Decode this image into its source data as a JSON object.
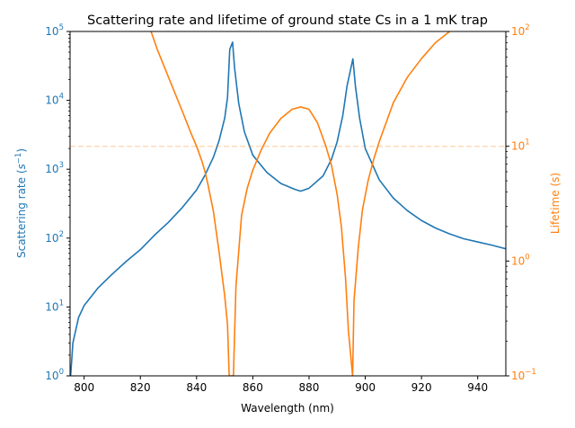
{
  "chart_data": {
    "type": "line",
    "title": "Scattering rate and lifetime of ground state Cs in a 1 mK trap",
    "xlabel": "Wavelength (nm)",
    "xlim": [
      795,
      950
    ],
    "x_ticks": [
      "800",
      "820",
      "840",
      "860",
      "880",
      "900",
      "920",
      "940"
    ],
    "x_tick_values": [
      800,
      820,
      840,
      860,
      880,
      900,
      920,
      940
    ],
    "left_axis": {
      "label_text": "Scattering rate (",
      "label_var": "s",
      "label_exp": "−1",
      "label_close": ")",
      "scale": "log",
      "ylim": [
        1,
        100000
      ],
      "color": "#1f77b4",
      "tick_exponents": [
        "0",
        "1",
        "2",
        "3",
        "4",
        "5"
      ]
    },
    "right_axis": {
      "label": "Lifetime (s)",
      "scale": "log",
      "ylim": [
        0.1,
        100
      ],
      "color": "#ff7f0e",
      "tick_exponents": [
        "−1",
        "0",
        "1",
        "2"
      ]
    },
    "resonances_nm": [
      852.3,
      894.6
    ],
    "series": [
      {
        "axis": "left",
        "color": "#1f77b4",
        "x": [
          795.2,
          796,
          798,
          800,
          805,
          810,
          815,
          820,
          825,
          830,
          835,
          840,
          843,
          846,
          848,
          850,
          851,
          851.8,
          852.8,
          853.5,
          855,
          857,
          860,
          865,
          870,
          875,
          877,
          880,
          885,
          888,
          890,
          892,
          893.5,
          895.6,
          896.5,
          898,
          900,
          905,
          910,
          915,
          920,
          925,
          930,
          935,
          940,
          945,
          950
        ],
        "y": [
          1,
          3,
          7,
          10.5,
          19,
          30,
          46,
          68,
          110,
          170,
          280,
          500,
          820,
          1500,
          2600,
          5500,
          11000,
          55000,
          70000,
          30000,
          9000,
          3500,
          1600,
          900,
          620,
          510,
          480,
          530,
          800,
          1400,
          2500,
          6000,
          16000,
          40000,
          16000,
          5500,
          2000,
          700,
          380,
          250,
          180,
          140,
          115,
          98,
          88,
          79,
          70
        ]
      },
      {
        "axis": "right",
        "color": "#ff7f0e",
        "x": [
          823.8,
          826,
          830,
          835,
          838,
          840,
          842,
          843,
          844,
          846,
          848,
          850,
          851,
          851.6,
          853.1,
          854,
          856,
          858,
          860,
          863,
          866,
          870,
          874,
          877,
          880,
          883,
          886,
          888,
          890,
          891.5,
          893,
          894,
          895.5,
          896,
          897.5,
          899,
          901,
          903,
          905,
          910,
          915,
          920,
          925,
          930
        ],
        "y": [
          100,
          70,
          40,
          20,
          13,
          10,
          7.3,
          6,
          4.7,
          2.7,
          1.2,
          0.5,
          0.28,
          0.1,
          0.1,
          0.6,
          2.5,
          4.3,
          6.2,
          9.3,
          13,
          17.5,
          21,
          22,
          21,
          16,
          10,
          6.8,
          3.8,
          2,
          0.7,
          0.25,
          0.1,
          0.45,
          1.3,
          2.8,
          5,
          7.7,
          11,
          24,
          40,
          58,
          80,
          100
        ]
      },
      {
        "axis": "right",
        "color": "#ff7f0e",
        "style": "dashed",
        "opacity": 0.3,
        "x": [
          795,
          950
        ],
        "y": [
          10,
          10
        ]
      }
    ]
  }
}
